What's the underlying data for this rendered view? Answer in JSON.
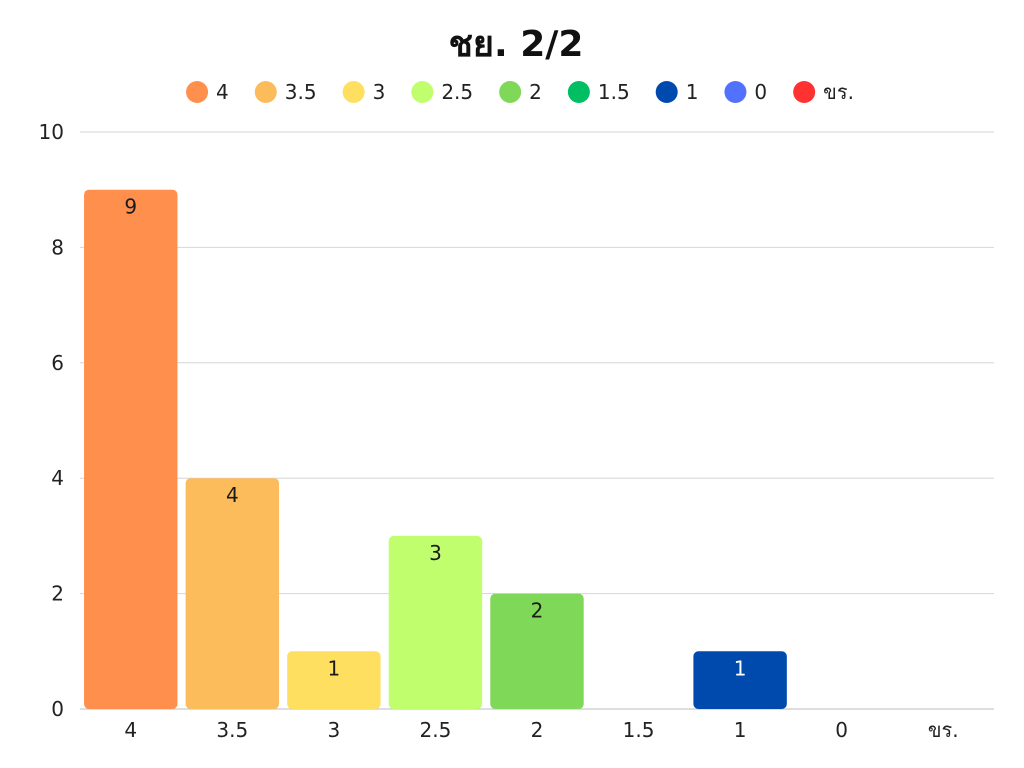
{
  "chart_data": {
    "type": "bar",
    "title": "ชย. 2/2",
    "xlabel": "",
    "ylabel": "",
    "categories": [
      "4",
      "3.5",
      "3",
      "2.5",
      "2",
      "1.5",
      "1",
      "0",
      "ขร."
    ],
    "values": [
      9,
      4,
      1,
      3,
      2,
      0,
      1,
      0,
      0
    ],
    "colors": [
      "#ff8f4d",
      "#fdbc5c",
      "#ffdf5f",
      "#c0fe6e",
      "#80d858",
      "#00bf63",
      "#004aad",
      "#5271ff",
      "#ff3131"
    ],
    "label_colors": [
      "#1a1a1a",
      "#1a1a1a",
      "#1a1a1a",
      "#1a1a1a",
      "#1a1a1a",
      "#1a1a1a",
      "#ffffff",
      "#1a1a1a",
      "#1a1a1a"
    ],
    "ylim": [
      0,
      10
    ],
    "yticks": [
      0,
      2,
      4,
      6,
      8,
      10
    ],
    "grid": true,
    "legend_position": "top",
    "legend": [
      "4",
      "3.5",
      "3",
      "2.5",
      "2",
      "1.5",
      "1",
      "0",
      "ขร."
    ]
  }
}
